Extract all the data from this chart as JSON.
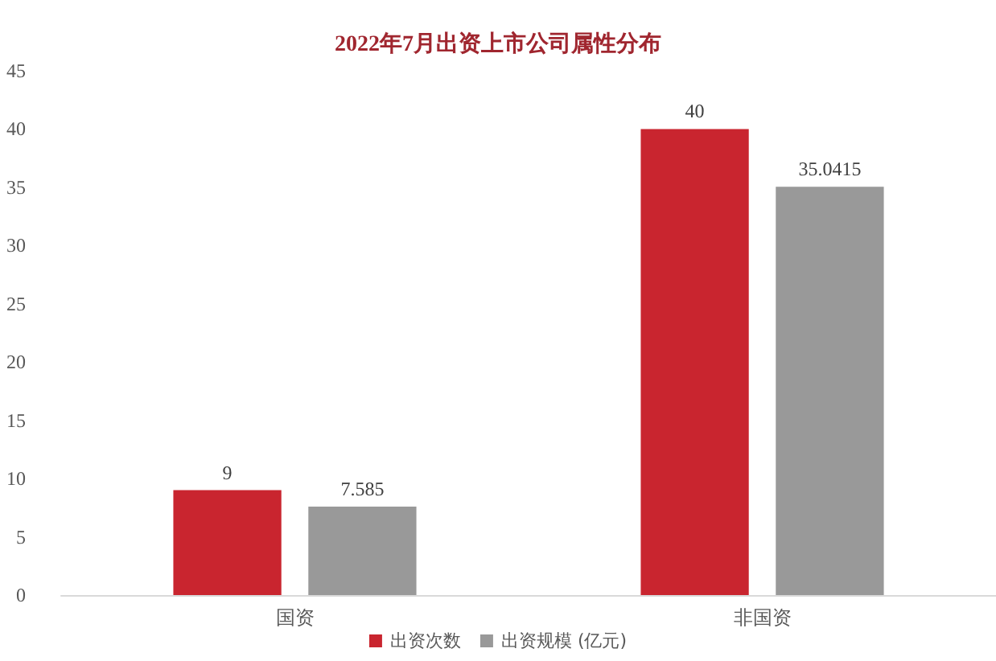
{
  "chart_data": {
    "type": "bar",
    "title": "2022年7月出资上市公司属性分布",
    "categories": [
      "国资",
      "非国资"
    ],
    "series": [
      {
        "name": "出资次数",
        "color": "#c9252f",
        "values": [
          9,
          40
        ]
      },
      {
        "name": "出资规模 (亿元)",
        "color": "#999999",
        "values": [
          7.585,
          35.0415
        ]
      }
    ],
    "ylim": [
      0,
      45
    ],
    "yticks": [
      0,
      5,
      10,
      15,
      20,
      25,
      30,
      35,
      40,
      45
    ],
    "grid": false,
    "legend": "bottom",
    "data_labels": true
  }
}
